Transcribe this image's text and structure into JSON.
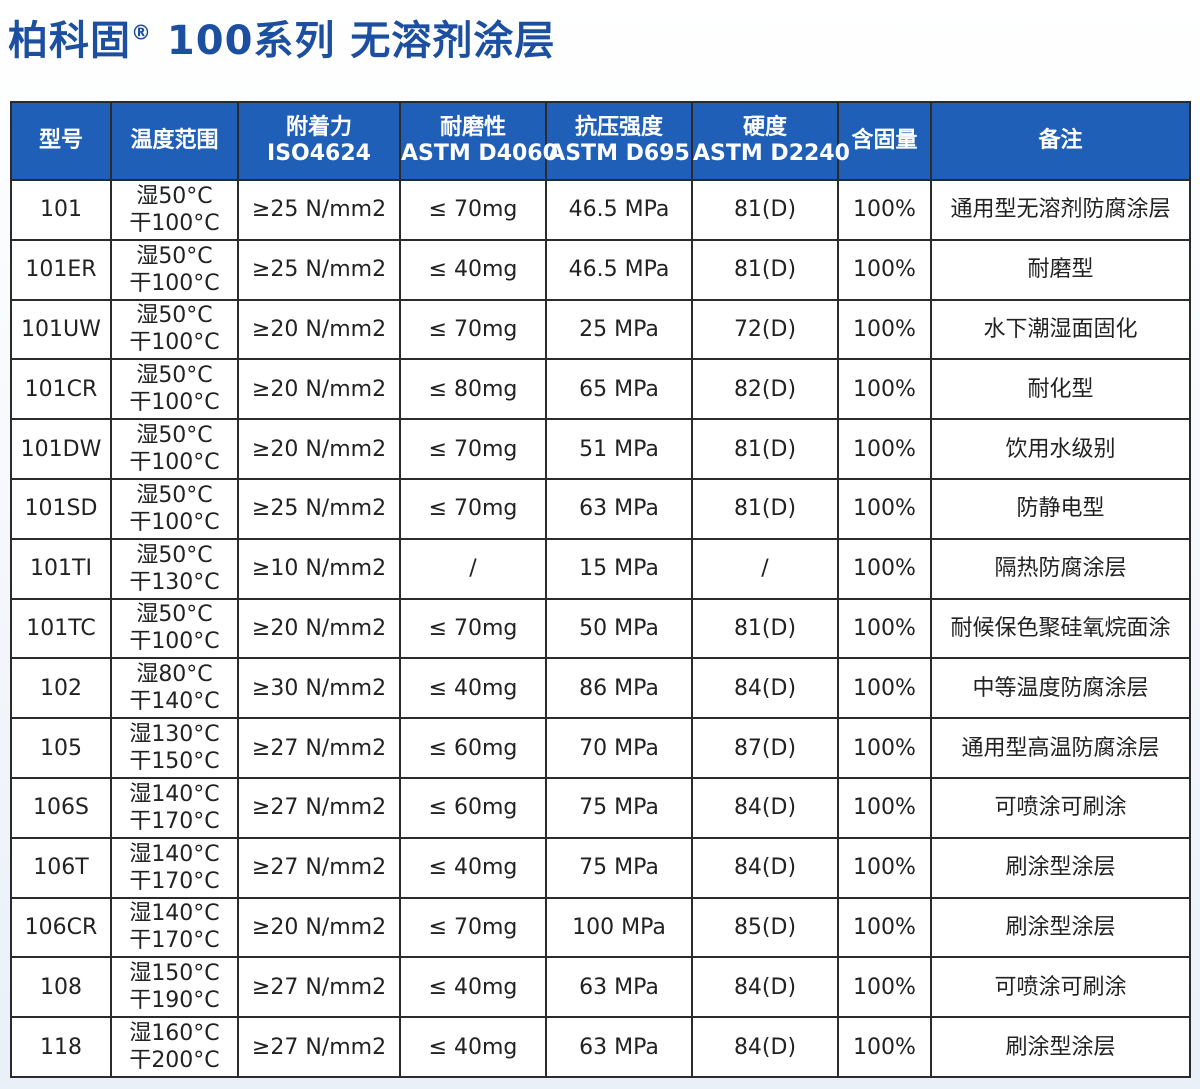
{
  "title": "柏科固",
  "title_mark": "®",
  "title_rest": " 100系列 无溶剂涂层",
  "headers": [
    [
      "型号"
    ],
    [
      "温度范围"
    ],
    [
      "附着力",
      "ISO4624"
    ],
    [
      "耐磨性",
      "ASTM D4060"
    ],
    [
      "抗压强度",
      "ASTM D695"
    ],
    [
      "硬度",
      "ASTM D2240"
    ],
    [
      "含固量"
    ],
    [
      "备注"
    ]
  ],
  "rows": [
    {
      "model": "101",
      "wet": "湿50°C",
      "dry": "干100°C",
      "adhesion": "≥25 N/mm2",
      "abrasion": "≤ 70mg",
      "strength": "46.5 MPa",
      "hardness": "81(D)",
      "solids": "100%",
      "note": "通用型无溶剂防腐涂层"
    },
    {
      "model": "101ER",
      "wet": "湿50°C",
      "dry": "干100°C",
      "adhesion": "≥25 N/mm2",
      "abrasion": "≤ 40mg",
      "strength": "46.5 MPa",
      "hardness": "81(D)",
      "solids": "100%",
      "note": "耐磨型"
    },
    {
      "model": "101UW",
      "wet": "湿50°C",
      "dry": "干100°C",
      "adhesion": "≥20 N/mm2",
      "abrasion": "≤ 70mg",
      "strength": "25 MPa",
      "hardness": "72(D)",
      "solids": "100%",
      "note": "水下潮湿面固化"
    },
    {
      "model": "101CR",
      "wet": "湿50°C",
      "dry": "干100°C",
      "adhesion": "≥20 N/mm2",
      "abrasion": "≤ 80mg",
      "strength": "65 MPa",
      "hardness": "82(D)",
      "solids": "100%",
      "note": "耐化型"
    },
    {
      "model": "101DW",
      "wet": "湿50°C",
      "dry": "干100°C",
      "adhesion": "≥20 N/mm2",
      "abrasion": "≤ 70mg",
      "strength": "51 MPa",
      "hardness": "81(D)",
      "solids": "100%",
      "note": "饮用水级别"
    },
    {
      "model": "101SD",
      "wet": "湿50°C",
      "dry": "干100°C",
      "adhesion": "≥25 N/mm2",
      "abrasion": "≤ 70mg",
      "strength": "63 MPa",
      "hardness": "81(D)",
      "solids": "100%",
      "note": "防静电型"
    },
    {
      "model": "101TI",
      "wet": "湿50°C",
      "dry": "干130°C",
      "adhesion": "≥10 N/mm2",
      "abrasion": "/",
      "strength": "15 MPa",
      "hardness": "/",
      "solids": "100%",
      "note": "隔热防腐涂层"
    },
    {
      "model": "101TC",
      "wet": "湿50°C",
      "dry": "干100°C",
      "adhesion": "≥20 N/mm2",
      "abrasion": "≤ 70mg",
      "strength": "50 MPa",
      "hardness": "81(D)",
      "solids": "100%",
      "note": "耐候保色聚硅氧烷面涂"
    },
    {
      "model": "102",
      "wet": "湿80°C",
      "dry": "干140°C",
      "adhesion": "≥30 N/mm2",
      "abrasion": "≤ 40mg",
      "strength": "86 MPa",
      "hardness": "84(D)",
      "solids": "100%",
      "note": "中等温度防腐涂层"
    },
    {
      "model": "105",
      "wet": "湿130°C",
      "dry": "干150°C",
      "adhesion": "≥27 N/mm2",
      "abrasion": "≤ 60mg",
      "strength": "70 MPa",
      "hardness": "87(D)",
      "solids": "100%",
      "note": "通用型高温防腐涂层"
    },
    {
      "model": "106S",
      "wet": "湿140°C",
      "dry": "干170°C",
      "adhesion": "≥27 N/mm2",
      "abrasion": "≤ 60mg",
      "strength": "75 MPa",
      "hardness": "84(D)",
      "solids": "100%",
      "note": "可喷涂可刷涂"
    },
    {
      "model": "106T",
      "wet": "湿140°C",
      "dry": "干170°C",
      "adhesion": "≥27 N/mm2",
      "abrasion": "≤ 40mg",
      "strength": "75 MPa",
      "hardness": "84(D)",
      "solids": "100%",
      "note": "刷涂型涂层"
    },
    {
      "model": "106CR",
      "wet": "湿140°C",
      "dry": "干170°C",
      "adhesion": "≥20 N/mm2",
      "abrasion": "≤ 70mg",
      "strength": "100 MPa",
      "hardness": "85(D)",
      "solids": "100%",
      "note": "刷涂型涂层"
    },
    {
      "model": "108",
      "wet": "湿150°C",
      "dry": "干190°C",
      "adhesion": "≥27 N/mm2",
      "abrasion": "≤ 40mg",
      "strength": "63 MPa",
      "hardness": "84(D)",
      "solids": "100%",
      "note": "可喷涂可刷涂"
    },
    {
      "model": "118",
      "wet": "湿160°C",
      "dry": "干200°C",
      "adhesion": "≥27 N/mm2",
      "abrasion": "≤ 40mg",
      "strength": "63 MPa",
      "hardness": "84(D)",
      "solids": "100%",
      "note": "刷涂型涂层"
    }
  ]
}
